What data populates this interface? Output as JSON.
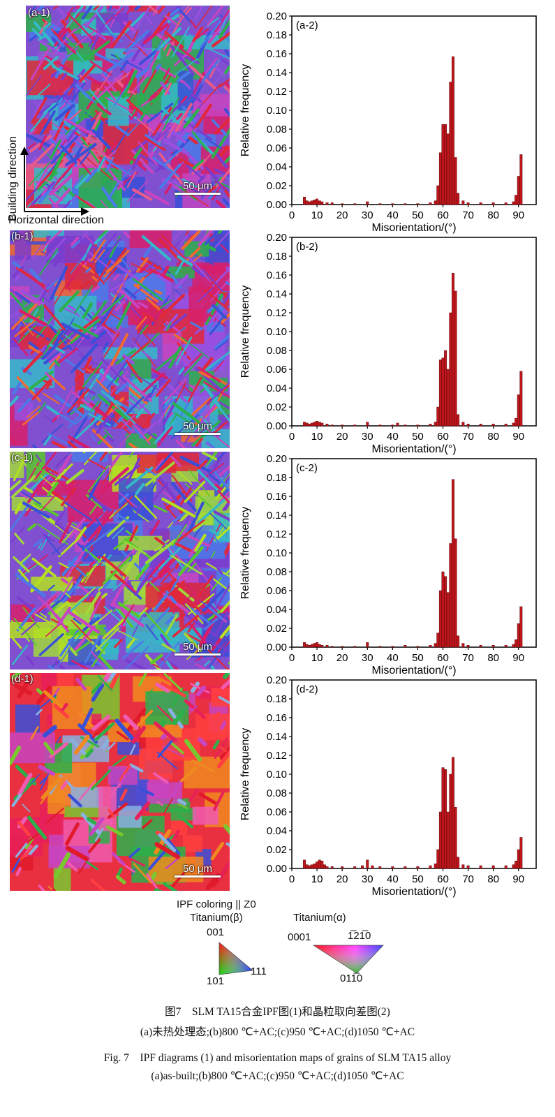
{
  "panels": [
    {
      "map_label": "(a-1)",
      "chart_label": "(a-2)",
      "scale": "50 μm"
    },
    {
      "map_label": "(b-1)",
      "chart_label": "(b-2)",
      "scale": "50 μm"
    },
    {
      "map_label": "(c-1)",
      "chart_label": "(c-2)",
      "scale": "50 μm"
    },
    {
      "map_label": "(d-1)",
      "chart_label": "(d-2)",
      "scale": "50 μm"
    }
  ],
  "axes_arrows": {
    "vertical": "Building direction",
    "horizontal": "Horizontal direction"
  },
  "chart_data": [
    {
      "type": "bar",
      "label": "(a-2)",
      "xlabel": "Misorientation/(°)",
      "ylabel": "Relative frequency",
      "xlim": [
        0,
        97
      ],
      "ylim": [
        0,
        0.2
      ],
      "xticks": [
        0,
        10,
        20,
        30,
        40,
        50,
        60,
        70,
        80,
        90
      ],
      "yticks": [
        "0.00",
        "0.02",
        "0.04",
        "0.06",
        "0.08",
        "0.10",
        "0.12",
        "0.14",
        "0.16",
        "0.18",
        "0.20"
      ],
      "x": [
        5,
        6,
        7,
        8,
        9,
        10,
        11,
        12,
        14,
        16,
        20,
        25,
        30,
        35,
        40,
        45,
        50,
        55,
        57,
        58,
        59,
        60,
        61,
        62,
        63,
        64,
        65,
        66,
        68,
        70,
        75,
        80,
        85,
        88,
        89,
        90,
        91
      ],
      "values": [
        0.008,
        0.004,
        0.003,
        0.004,
        0.005,
        0.006,
        0.004,
        0.003,
        0.002,
        0.002,
        0.001,
        0.001,
        0.003,
        0.001,
        0.001,
        0.001,
        0.001,
        0.002,
        0.004,
        0.02,
        0.055,
        0.085,
        0.085,
        0.075,
        0.13,
        0.157,
        0.05,
        0.012,
        0.004,
        0.002,
        0.002,
        0.002,
        0.002,
        0.003,
        0.01,
        0.03,
        0.053
      ]
    },
    {
      "type": "bar",
      "label": "(b-2)",
      "xlabel": "Misorientation/(°)",
      "ylabel": "Relative frequency",
      "xlim": [
        0,
        97
      ],
      "ylim": [
        0,
        0.2
      ],
      "xticks": [
        0,
        10,
        20,
        30,
        40,
        50,
        60,
        70,
        80,
        90
      ],
      "yticks": [
        "0.00",
        "0.02",
        "0.04",
        "0.06",
        "0.08",
        "0.10",
        "0.12",
        "0.14",
        "0.16",
        "0.18",
        "0.20"
      ],
      "x": [
        5,
        6,
        7,
        8,
        9,
        10,
        11,
        12,
        14,
        16,
        20,
        25,
        30,
        35,
        40,
        42,
        45,
        50,
        55,
        57,
        58,
        59,
        60,
        61,
        62,
        63,
        64,
        65,
        66,
        68,
        70,
        75,
        80,
        85,
        88,
        89,
        90,
        91
      ],
      "values": [
        0.004,
        0.003,
        0.002,
        0.003,
        0.004,
        0.005,
        0.004,
        0.003,
        0.002,
        0.001,
        0.001,
        0.001,
        0.004,
        0.001,
        0.001,
        0.003,
        0.001,
        0.001,
        0.002,
        0.004,
        0.02,
        0.07,
        0.072,
        0.08,
        0.06,
        0.12,
        0.162,
        0.143,
        0.012,
        0.004,
        0.002,
        0.002,
        0.002,
        0.002,
        0.003,
        0.008,
        0.033,
        0.058
      ]
    },
    {
      "type": "bar",
      "label": "(c-2)",
      "xlabel": "Misorientation/(°)",
      "ylabel": "Relative frequency",
      "xlim": [
        0,
        97
      ],
      "ylim": [
        0,
        0.2
      ],
      "xticks": [
        0,
        10,
        20,
        30,
        40,
        50,
        60,
        70,
        80,
        90
      ],
      "yticks": [
        "0.00",
        "0.02",
        "0.04",
        "0.06",
        "0.08",
        "0.10",
        "0.12",
        "0.14",
        "0.16",
        "0.18",
        "0.20"
      ],
      "x": [
        5,
        6,
        7,
        8,
        9,
        10,
        11,
        12,
        14,
        16,
        20,
        25,
        30,
        35,
        40,
        45,
        50,
        55,
        57,
        58,
        59,
        60,
        61,
        62,
        63,
        64,
        65,
        66,
        68,
        70,
        75,
        80,
        85,
        88,
        89,
        90,
        91
      ],
      "values": [
        0.005,
        0.003,
        0.002,
        0.003,
        0.004,
        0.005,
        0.003,
        0.002,
        0.002,
        0.001,
        0.001,
        0.001,
        0.005,
        0.001,
        0.001,
        0.002,
        0.001,
        0.002,
        0.004,
        0.015,
        0.06,
        0.08,
        0.075,
        0.058,
        0.11,
        0.178,
        0.115,
        0.012,
        0.004,
        0.002,
        0.002,
        0.002,
        0.002,
        0.003,
        0.008,
        0.025,
        0.043
      ]
    },
    {
      "type": "bar",
      "label": "(d-2)",
      "xlabel": "Misorientation/(°)",
      "ylabel": "Relative frequency",
      "xlim": [
        0,
        97
      ],
      "ylim": [
        0,
        0.2
      ],
      "xticks": [
        0,
        10,
        20,
        30,
        40,
        50,
        60,
        70,
        80,
        90
      ],
      "yticks": [
        "0.00",
        "0.02",
        "0.04",
        "0.06",
        "0.08",
        "0.10",
        "0.12",
        "0.14",
        "0.16",
        "0.18",
        "0.20"
      ],
      "x": [
        5,
        6,
        7,
        8,
        9,
        10,
        11,
        12,
        13,
        14,
        16,
        20,
        25,
        28,
        30,
        32,
        35,
        40,
        45,
        50,
        55,
        57,
        58,
        59,
        60,
        61,
        62,
        63,
        64,
        65,
        66,
        68,
        70,
        75,
        80,
        85,
        88,
        89,
        90,
        91
      ],
      "values": [
        0.009,
        0.004,
        0.003,
        0.004,
        0.005,
        0.007,
        0.009,
        0.008,
        0.004,
        0.002,
        0.002,
        0.002,
        0.002,
        0.003,
        0.009,
        0.003,
        0.002,
        0.002,
        0.002,
        0.002,
        0.003,
        0.005,
        0.02,
        0.06,
        0.107,
        0.105,
        0.06,
        0.1,
        0.118,
        0.065,
        0.012,
        0.004,
        0.003,
        0.003,
        0.003,
        0.003,
        0.004,
        0.008,
        0.02,
        0.033
      ]
    }
  ],
  "legend": {
    "title": "IPF coloring || Z0",
    "beta_title": "Titanium(β)",
    "beta_top": "001",
    "beta_left": "101",
    "beta_right": "111",
    "alpha_title": "Titanium(α)",
    "alpha_left": "0001",
    "alpha_right": "1̅21̅0",
    "alpha_bottom": "011̅0"
  },
  "caption": {
    "cn_title": "图7　SLM TA15合金IPF图(1)和晶粒取向差图(2)",
    "cn_sub": "(a)未热处理态;(b)800 ℃+AC;(c)950 ℃+AC;(d)1050 ℃+AC",
    "en_title": "Fig. 7　IPF diagrams (1) and misorientation maps of grains of SLM TA15 alloy",
    "en_sub": "(a)as-built;(b)800 ℃+AC;(c)950 ℃+AC;(d)1050 ℃+AC"
  },
  "colors": {
    "bar_fill": "#c0161c",
    "bar_edge": "#5a0a0c"
  }
}
